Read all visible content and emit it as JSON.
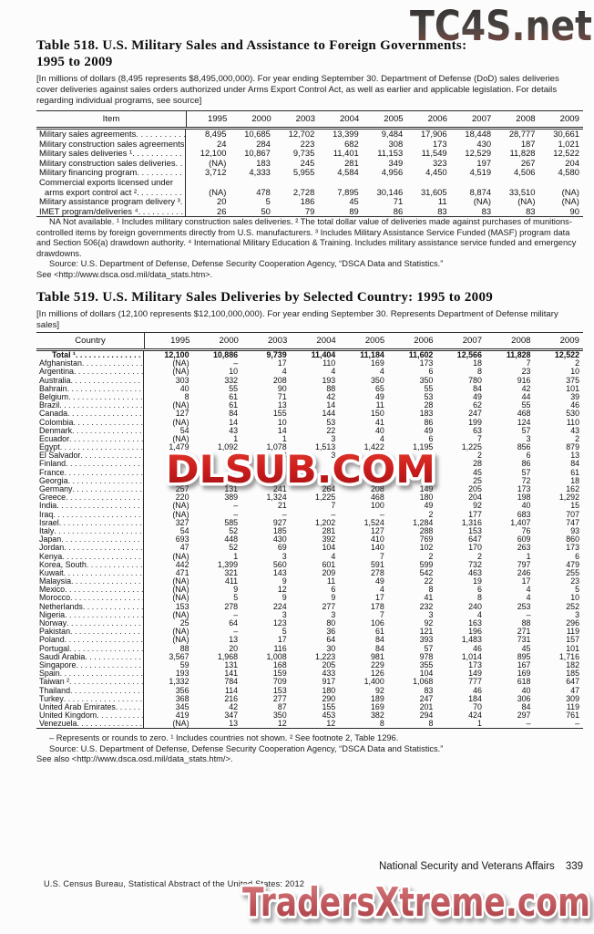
{
  "watermarks": {
    "top": "TC4S.net",
    "middle": "DLSUB.COM",
    "bottom": "TradersXtreme.com"
  },
  "colors": {
    "text": "#111111",
    "rule": "#2a2a2a",
    "wm_red": "#c41d1d",
    "wm_rose": "#c05a5f",
    "wm_gray_brown": "#8a463d"
  },
  "table518": {
    "title_line1": "Table 518. U.S. Military Sales and Assistance to Foreign Governments:",
    "title_line2": "1995 to 2009",
    "note": "[In millions of dollars (8,495 represents $8,495,000,000). For year ending September 30. Department of Defense (DoD) sales deliveries cover deliveries against sales orders authorized under Arms Export Control Act, as well as earlier and applicable legislation. For details regarding individual programs, see source]",
    "col_label": "Item",
    "years": [
      "1995",
      "2000",
      "2003",
      "2004",
      "2005",
      "2006",
      "2007",
      "2008",
      "2009"
    ],
    "rows": [
      {
        "label": "Military sales agreements",
        "leader": true,
        "values": [
          "8,495",
          "10,685",
          "12,702",
          "13,399",
          "9,484",
          "17,906",
          "18,448",
          "28,777",
          "30,661"
        ]
      },
      {
        "label": "Military construction sales agreements",
        "leader": true,
        "values": [
          "24",
          "284",
          "223",
          "682",
          "308",
          "173",
          "430",
          "187",
          "1,021"
        ]
      },
      {
        "label": "Military sales deliveries ¹",
        "leader": true,
        "values": [
          "12,100",
          "10,867",
          "9,735",
          "11,401",
          "11,153",
          "11,549",
          "12,529",
          "11,828",
          "12,522"
        ]
      },
      {
        "label": "Military construction sales deliveries",
        "leader": true,
        "values": [
          "(NA)",
          "183",
          "245",
          "281",
          "349",
          "323",
          "197",
          "267",
          "204"
        ]
      },
      {
        "label": "Military financing program",
        "leader": true,
        "values": [
          "3,712",
          "4,333",
          "5,955",
          "4,584",
          "4,956",
          "4,450",
          "4,519",
          "4,506",
          "4,580"
        ]
      },
      {
        "label": "Commercial exports licensed under",
        "leader": false,
        "values": null
      },
      {
        "label": "arms export control act ²",
        "indent": 6,
        "leader": true,
        "values": [
          "(NA)",
          "478",
          "2,728",
          "7,895",
          "30,146",
          "31,605",
          "8,874",
          "33,510",
          "(NA)"
        ]
      },
      {
        "label": "Military assistance program delivery ³",
        "leader": true,
        "values": [
          "20",
          "5",
          "186",
          "45",
          "71",
          "11",
          "(NA)",
          "(NA)",
          "(NA)"
        ]
      },
      {
        "label": "IMET program/deliveries ⁴",
        "leader": true,
        "values": [
          "26",
          "50",
          "79",
          "89",
          "86",
          "83",
          "83",
          "83",
          "90"
        ]
      }
    ],
    "footnote": "NA Not available. ¹ Includes military construction sales deliveries. ² The total dollar value of deliveries made against purchases of munitions-controlled items by foreign governments directly from U.S. manufacturers. ³ Includes Military Assistance Service Funded (MASF) program data and Section 506(a) drawdown authority. ⁴ International Military Education & Training. Includes military assistance service funded and emergency drawdowns.",
    "source_line1": "Source: U.S. Department of Defense, Defense Security Cooperation Agency, “DSCA Data and Statistics.”",
    "source_line2": "See <http://www.dsca.osd.mil/data_stats.htm>."
  },
  "table519": {
    "title_line1": "Table 519. U.S. Military Sales Deliveries by Selected Country: 1995 to 2009",
    "note": "[In millions of dollars (12,100 represents $12,100,000,000). For year ending September 30. Represents Department of Defense military sales]",
    "col_label": "Country",
    "years": [
      "1995",
      "2000",
      "2003",
      "2004",
      "2005",
      "2006",
      "2007",
      "2008",
      "2009"
    ],
    "rows": [
      {
        "label": "Total ¹",
        "bold": true,
        "indent": 14,
        "leader": true,
        "values": [
          "12,100",
          "10,886",
          "9,739",
          "11,404",
          "11,184",
          "11,602",
          "12,566",
          "11,828",
          "12,522"
        ]
      },
      {
        "label": "Afghanistan",
        "leader": true,
        "values": [
          "(NA)",
          "–",
          "17",
          "110",
          "169",
          "173",
          "18",
          "7",
          "2"
        ]
      },
      {
        "label": "Argentina",
        "leader": true,
        "values": [
          "(NA)",
          "10",
          "4",
          "4",
          "4",
          "6",
          "8",
          "23",
          "10"
        ]
      },
      {
        "label": "Australia",
        "leader": true,
        "values": [
          "303",
          "332",
          "208",
          "193",
          "350",
          "350",
          "780",
          "916",
          "375"
        ]
      },
      {
        "label": "Bahrain",
        "leader": true,
        "values": [
          "40",
          "55",
          "90",
          "88",
          "65",
          "55",
          "84",
          "42",
          "101"
        ]
      },
      {
        "label": "Belgium",
        "leader": true,
        "values": [
          "8",
          "61",
          "71",
          "42",
          "49",
          "53",
          "49",
          "44",
          "39"
        ]
      },
      {
        "label": "Brazil",
        "leader": true,
        "values": [
          "(NA)",
          "61",
          "13",
          "14",
          "11",
          "28",
          "62",
          "55",
          "46"
        ]
      },
      {
        "label": "Canada",
        "leader": true,
        "values": [
          "127",
          "84",
          "155",
          "144",
          "150",
          "183",
          "247",
          "468",
          "530"
        ]
      },
      {
        "label": "Colombia",
        "leader": true,
        "values": [
          "(NA)",
          "14",
          "10",
          "53",
          "41",
          "86",
          "199",
          "124",
          "110"
        ]
      },
      {
        "label": "Denmark",
        "leader": true,
        "values": [
          "54",
          "43",
          "14",
          "22",
          "40",
          "49",
          "63",
          "57",
          "43"
        ]
      },
      {
        "label": "Ecuador",
        "leader": true,
        "values": [
          "(NA)",
          "1",
          "1",
          "3",
          "4",
          "6",
          "7",
          "3",
          "2"
        ]
      },
      {
        "label": "Egypt",
        "leader": true,
        "values": [
          "1,479",
          "1,092",
          "1,078",
          "1,513",
          "1,422",
          "1,195",
          "1,225",
          "856",
          "879"
        ]
      },
      {
        "label": "El Salvador",
        "leader": true,
        "values": [
          "(NA)",
          "12",
          "3",
          "3",
          "3",
          "9",
          "2",
          "6",
          "13"
        ]
      },
      {
        "label": "Finland",
        "leader": true,
        "values": [
          "",
          "",
          "",
          "",
          "",
          "",
          "28",
          "86",
          "84"
        ]
      },
      {
        "label": "France",
        "leader": true,
        "values": [
          "",
          "",
          "",
          "",
          "",
          "",
          "45",
          "57",
          "61"
        ]
      },
      {
        "label": "Georgia",
        "leader": true,
        "values": [
          "",
          "",
          "",
          "",
          "",
          "",
          "25",
          "72",
          "18"
        ]
      },
      {
        "label": "Germany",
        "leader": true,
        "values": [
          "257",
          "131",
          "241",
          "264",
          "208",
          "149",
          "205",
          "173",
          "162"
        ]
      },
      {
        "label": "Greece",
        "leader": true,
        "values": [
          "220",
          "389",
          "1,324",
          "1,225",
          "468",
          "180",
          "204",
          "198",
          "1,292"
        ]
      },
      {
        "label": "India",
        "leader": true,
        "values": [
          "(NA)",
          "–",
          "21",
          "7",
          "100",
          "49",
          "92",
          "40",
          "15"
        ]
      },
      {
        "label": "Iraq",
        "leader": true,
        "values": [
          "(NA)",
          "–",
          "–",
          "–",
          "–",
          "2",
          "177",
          "683",
          "707"
        ]
      },
      {
        "label": "Israel",
        "leader": true,
        "values": [
          "327",
          "585",
          "927",
          "1,202",
          "1,524",
          "1,284",
          "1,316",
          "1,407",
          "747"
        ]
      },
      {
        "label": "Italy",
        "leader": true,
        "values": [
          "54",
          "52",
          "185",
          "281",
          "127",
          "288",
          "153",
          "76",
          "93"
        ]
      },
      {
        "label": "Japan",
        "leader": true,
        "values": [
          "693",
          "448",
          "430",
          "392",
          "410",
          "769",
          "647",
          "609",
          "860"
        ]
      },
      {
        "label": "Jordan",
        "leader": true,
        "values": [
          "47",
          "52",
          "69",
          "104",
          "140",
          "102",
          "170",
          "263",
          "173"
        ]
      },
      {
        "label": "Kenya",
        "leader": true,
        "values": [
          "(NA)",
          "1",
          "3",
          "4",
          "7",
          "2",
          "2",
          "1",
          "6"
        ]
      },
      {
        "label": "Korea, South",
        "leader": true,
        "values": [
          "442",
          "1,399",
          "560",
          "601",
          "591",
          "599",
          "732",
          "797",
          "479"
        ]
      },
      {
        "label": "Kuwait",
        "leader": true,
        "values": [
          "471",
          "321",
          "143",
          "209",
          "278",
          "542",
          "463",
          "246",
          "255"
        ]
      },
      {
        "label": "Malaysia",
        "leader": true,
        "values": [
          "(NA)",
          "411",
          "9",
          "11",
          "49",
          "22",
          "19",
          "17",
          "23"
        ]
      },
      {
        "label": "Mexico",
        "leader": true,
        "values": [
          "(NA)",
          "9",
          "12",
          "6",
          "4",
          "8",
          "6",
          "4",
          "5"
        ]
      },
      {
        "label": "Morocco",
        "leader": true,
        "values": [
          "(NA)",
          "5",
          "9",
          "9",
          "17",
          "41",
          "8",
          "4",
          "10"
        ]
      },
      {
        "label": "Netherlands",
        "leader": true,
        "values": [
          "153",
          "278",
          "224",
          "277",
          "178",
          "232",
          "240",
          "253",
          "252"
        ]
      },
      {
        "label": "Nigeria",
        "leader": true,
        "values": [
          "(NA)",
          "–",
          "3",
          "3",
          "7",
          "3",
          "4",
          "–",
          "3"
        ]
      },
      {
        "label": "Norway",
        "leader": true,
        "values": [
          "25",
          "64",
          "123",
          "80",
          "106",
          "92",
          "163",
          "88",
          "296"
        ]
      },
      {
        "label": "Pakistan",
        "leader": true,
        "values": [
          "(NA)",
          "–",
          "5",
          "36",
          "61",
          "121",
          "196",
          "271",
          "119"
        ]
      },
      {
        "label": "Poland",
        "leader": true,
        "values": [
          "(NA)",
          "13",
          "17",
          "64",
          "84",
          "393",
          "1,483",
          "731",
          "157"
        ]
      },
      {
        "label": "Portugal",
        "leader": true,
        "values": [
          "88",
          "20",
          "116",
          "30",
          "84",
          "57",
          "46",
          "45",
          "101"
        ]
      },
      {
        "label": "Saudi Arabia",
        "leader": true,
        "values": [
          "3,567",
          "1,968",
          "1,008",
          "1,223",
          "981",
          "978",
          "1,014",
          "895",
          "1,716"
        ]
      },
      {
        "label": "Singapore",
        "leader": true,
        "values": [
          "59",
          "131",
          "168",
          "205",
          "229",
          "355",
          "173",
          "167",
          "182"
        ]
      },
      {
        "label": "Spain",
        "leader": true,
        "values": [
          "193",
          "141",
          "159",
          "433",
          "126",
          "104",
          "149",
          "169",
          "185"
        ]
      },
      {
        "label": "Taiwan ²",
        "leader": true,
        "values": [
          "1,332",
          "784",
          "709",
          "917",
          "1,400",
          "1,068",
          "777",
          "618",
          "647"
        ]
      },
      {
        "label": "Thailand",
        "leader": true,
        "values": [
          "356",
          "114",
          "153",
          "180",
          "92",
          "83",
          "46",
          "40",
          "47"
        ]
      },
      {
        "label": "Turkey",
        "leader": true,
        "values": [
          "368",
          "216",
          "277",
          "290",
          "189",
          "247",
          "184",
          "306",
          "309"
        ]
      },
      {
        "label": "United Arab Emirates",
        "leader": true,
        "values": [
          "345",
          "42",
          "87",
          "155",
          "169",
          "201",
          "70",
          "84",
          "119"
        ]
      },
      {
        "label": "United Kingdom",
        "leader": true,
        "values": [
          "419",
          "347",
          "350",
          "453",
          "382",
          "294",
          "424",
          "297",
          "761"
        ]
      },
      {
        "label": "Venezuela",
        "leader": true,
        "values": [
          "(NA)",
          "13",
          "12",
          "12",
          "8",
          "8",
          "1",
          "–",
          "–"
        ]
      }
    ],
    "footnote": "– Represents or rounds to zero. ¹ Includes countries not shown. ² See footnote 2, Table 1296.",
    "source_line1": "Source: U.S. Department of Defense, Defense Security Cooperation Agency, “DSCA Data and Statistics.”",
    "source_line2": "See also <http://www.dsca.osd.mil/data_stats.htm/>."
  },
  "footer": {
    "section": "National Security and Veterans Affairs",
    "page": "339",
    "imprint": "U.S. Census Bureau, Statistical Abstract of the United States: 2012"
  }
}
